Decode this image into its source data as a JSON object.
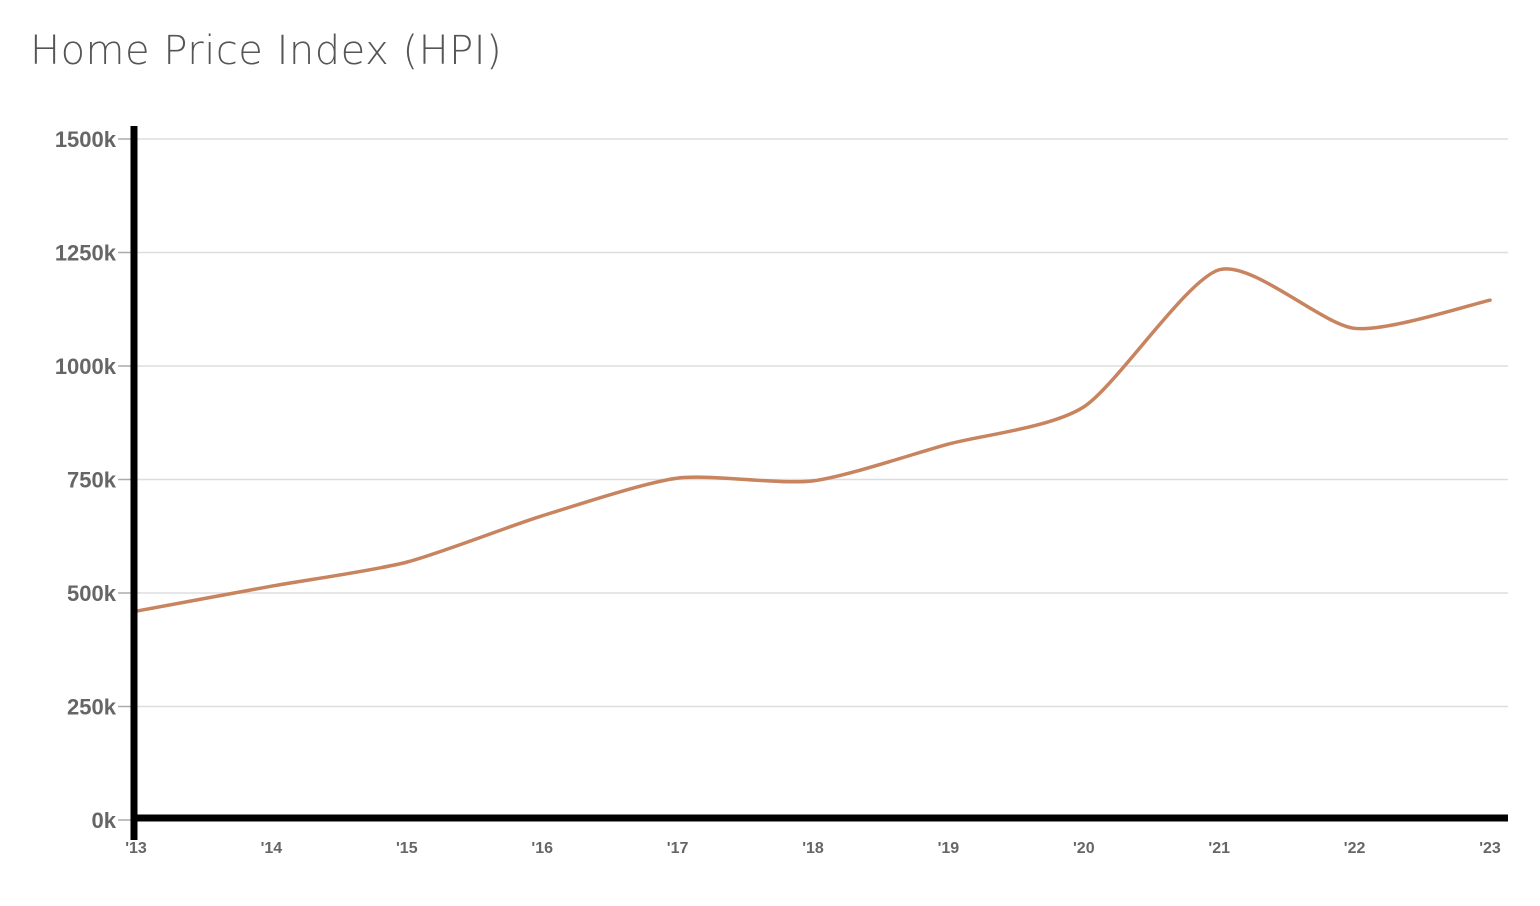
{
  "chart_data": {
    "type": "line",
    "title": "Home Price Index (HPI)",
    "xlabel": "",
    "ylabel": "",
    "categories": [
      "'13",
      "'14",
      "'15",
      "'16",
      "'17",
      "'18",
      "'19",
      "'20",
      "'21",
      "'22",
      "'23"
    ],
    "y_ticks": [
      "0k",
      "250k",
      "500k",
      "750k",
      "1000k",
      "1250k",
      "1500k"
    ],
    "y_tick_values": [
      0,
      250000,
      500000,
      750000,
      1000000,
      1250000,
      1500000
    ],
    "ylim": [
      0,
      1500000
    ],
    "grid": true,
    "legend": "none",
    "series": [
      {
        "color": "#c8835f",
        "values": [
          460000,
          515000,
          568000,
          670000,
          753000,
          747000,
          828000,
          910000,
          1212000,
          1083000,
          1145000
        ]
      }
    ]
  }
}
